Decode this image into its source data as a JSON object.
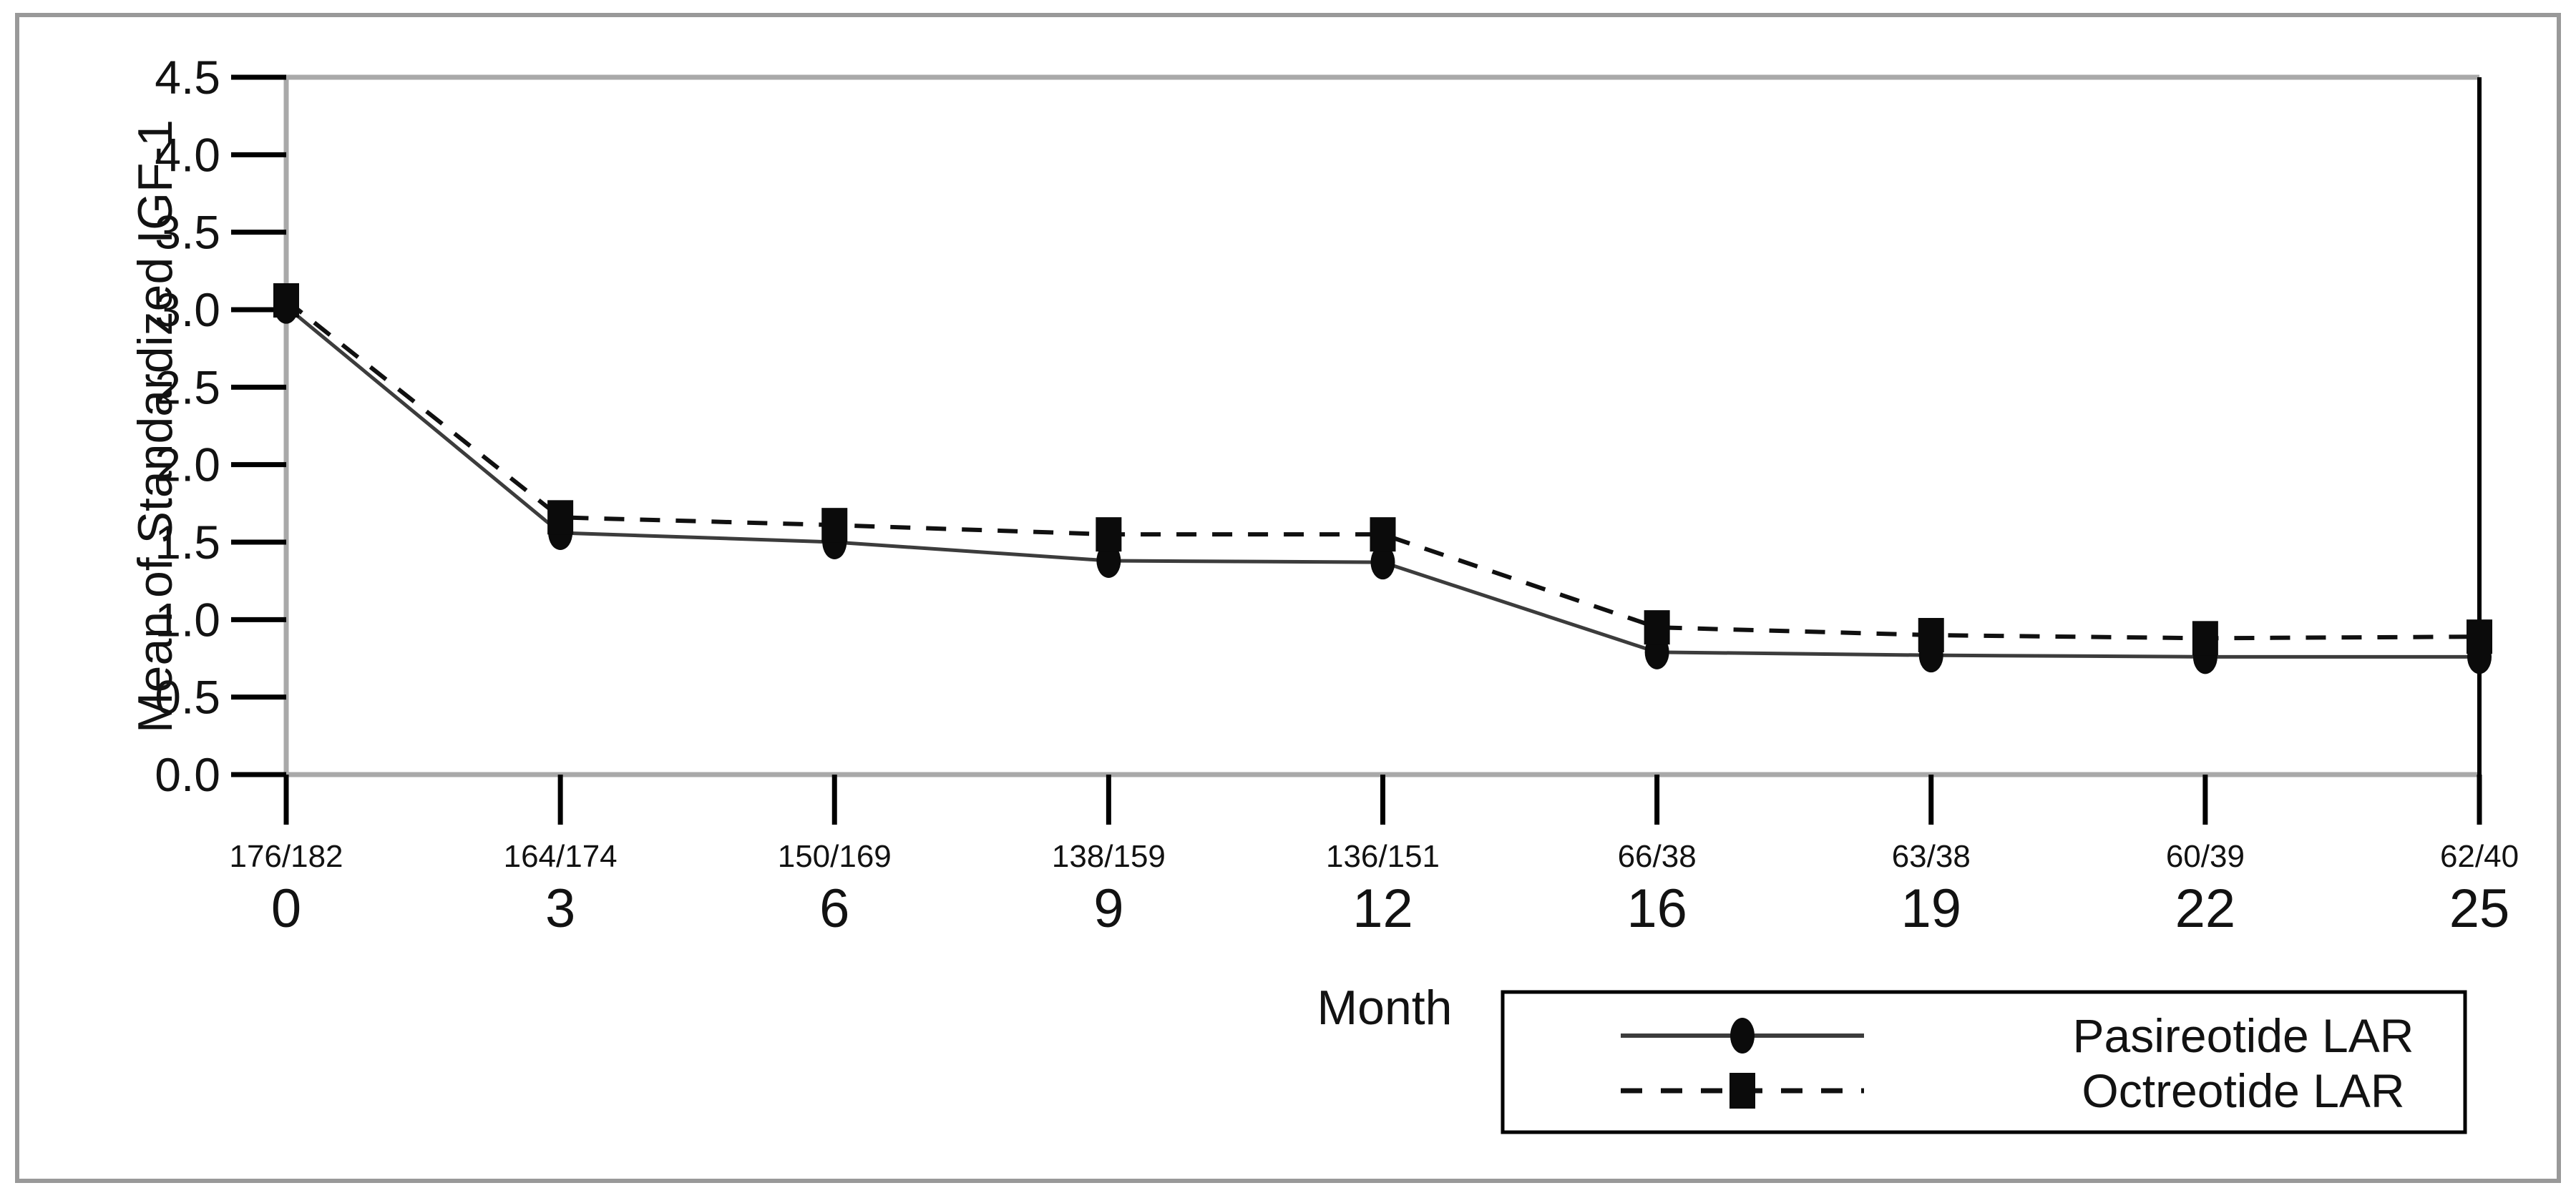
{
  "figure": {
    "background": "#ffffff",
    "outer_border_color": "#999999"
  },
  "colors": {
    "frame_gray": "#a9a9a9",
    "plot_right_border": "#000000",
    "tick_black": "#000000",
    "text": "#121212",
    "marker_black": "#0b0b0b",
    "legend_border": "#000000"
  },
  "chart_data": {
    "type": "line",
    "title": "",
    "xlabel": "Month",
    "ylabel": "Mean of Standardized IGF-1",
    "x_tick_labels": [
      "0",
      "3",
      "6",
      "9",
      "12",
      "16",
      "19",
      "22",
      "25"
    ],
    "x_n_labels": [
      "176/182",
      "164/174",
      "150/169",
      "138/159",
      "136/151",
      "66/38",
      "63/38",
      "60/39",
      "62/40"
    ],
    "y_tick_labels": [
      "0.0",
      "0.5",
      "1.0",
      "1.5",
      "2.0",
      "2.5",
      "3.0",
      "3.5",
      "4.0",
      "4.5"
    ],
    "ylim": [
      0,
      4.5
    ],
    "y_tick_step": 0.5,
    "grid": false,
    "legend_position": "bottom-right-box",
    "series": [
      {
        "name": "Pasireotide LAR",
        "marker": "circle",
        "line_style": "solid",
        "color": "#3c3c3c",
        "values": [
          3.02,
          1.56,
          1.5,
          1.38,
          1.37,
          0.79,
          0.77,
          0.76,
          0.76
        ]
      },
      {
        "name": "Octreotide LAR",
        "marker": "square",
        "line_style": "dashed",
        "color": "#101010",
        "values": [
          3.06,
          1.66,
          1.61,
          1.55,
          1.55,
          0.95,
          0.9,
          0.88,
          0.89
        ]
      }
    ]
  }
}
